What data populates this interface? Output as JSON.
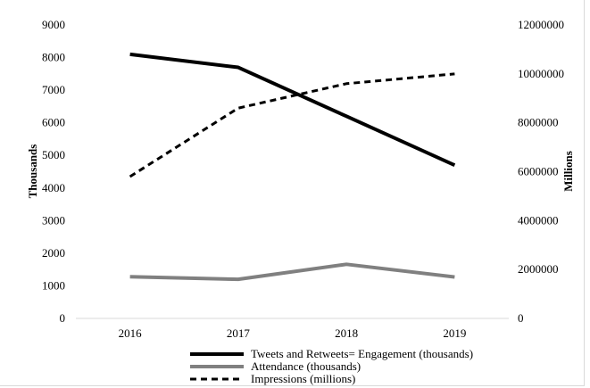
{
  "chart_data": {
    "type": "line",
    "title": "",
    "categories": [
      "2016",
      "2017",
      "2018",
      "2019"
    ],
    "y_left": {
      "label": "Thousands",
      "range": [
        0,
        9000
      ],
      "ticks": [
        "0",
        "1000",
        "2000",
        "3000",
        "4000",
        "5000",
        "6000",
        "7000",
        "8000",
        "9000"
      ]
    },
    "y_right": {
      "label": "Millions",
      "range": [
        0,
        12000000
      ],
      "ticks": [
        "0",
        "2000000",
        "4000000",
        "6000000",
        "8000000",
        "10000000",
        "12000000"
      ]
    },
    "grid": false,
    "legend_position": "bottom",
    "series": [
      {
        "name": "Tweets and Retweets= Engagement (thousands)",
        "axis": "left",
        "values": [
          8100,
          7700,
          6200,
          4700
        ],
        "color": "#000000",
        "style": "solid-thick"
      },
      {
        "name": "Attendance (thousands)",
        "axis": "left",
        "values": [
          1280,
          1200,
          1660,
          1270
        ],
        "color": "#808080",
        "style": "solid-thick"
      },
      {
        "name": "Impressions (millions)",
        "axis": "right",
        "values": [
          5800000,
          8600000,
          9600000,
          10000000
        ],
        "color": "#000000",
        "style": "dashed"
      }
    ]
  }
}
